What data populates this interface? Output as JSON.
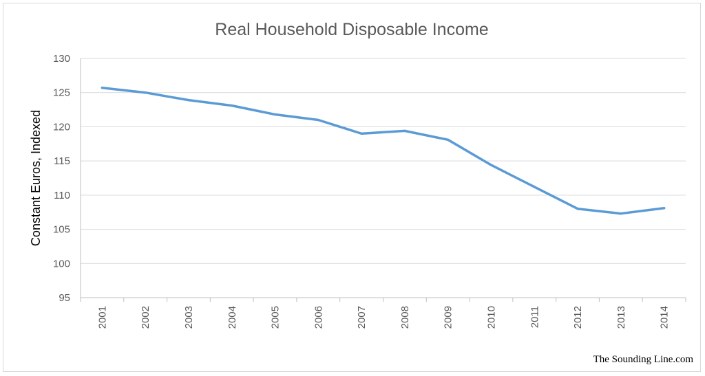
{
  "chart_data": {
    "type": "line",
    "title": "Real Household Disposable Income",
    "xlabel": "",
    "ylabel": "Constant Euros, Indexed",
    "ylim": [
      95,
      130
    ],
    "yticks": [
      95,
      100,
      105,
      110,
      115,
      120,
      125,
      130
    ],
    "categories": [
      "2001",
      "2002",
      "2003",
      "2004",
      "2005",
      "2006",
      "2007",
      "2008",
      "2009",
      "2010",
      "2011",
      "2012",
      "2013",
      "2014"
    ],
    "series": [
      {
        "values": [
          125.7,
          125.0,
          123.9,
          123.1,
          121.8,
          121.0,
          119.0,
          119.4,
          118.1,
          114.4,
          111.2,
          108.0,
          107.3,
          108.1
        ],
        "color": "#5b9bd5"
      }
    ],
    "grid": true,
    "legend": "none",
    "colors": {
      "line": "#5b9bd5",
      "gridline": "#d9d9d9",
      "axis": "#bfbfbf",
      "text": "#595959"
    }
  },
  "credit": "The Sounding Line.com"
}
